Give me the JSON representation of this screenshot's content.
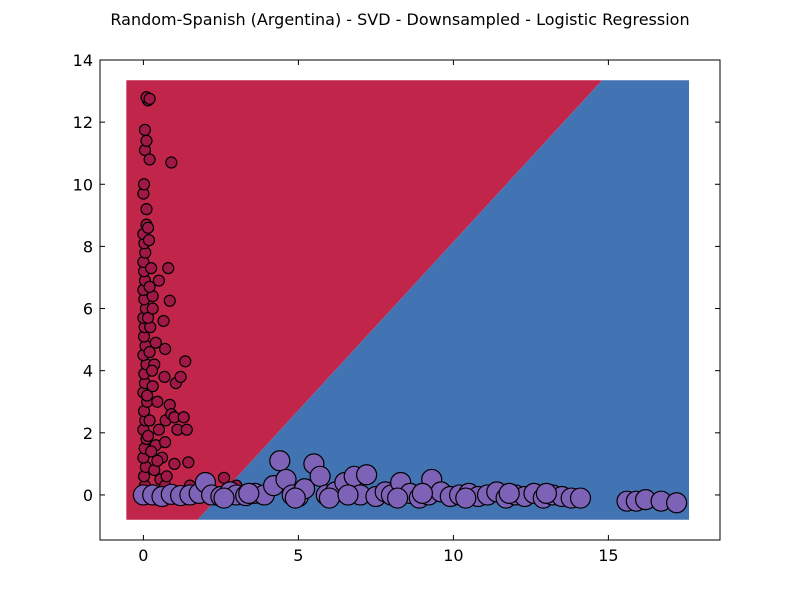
{
  "chart_data": {
    "type": "scatter",
    "title": "Random-Spanish (Argentina) - SVD - Downsampled - Logistic Regression",
    "xlabel": "",
    "ylabel": "",
    "xlim": [
      -1.4,
      18.6
    ],
    "ylim": [
      -1.45,
      14
    ],
    "xticks": [
      0,
      5,
      10,
      15
    ],
    "yticks": [
      0,
      2,
      4,
      6,
      8,
      10,
      12,
      14
    ],
    "grid": false,
    "colors": {
      "region_class_1": "#c1264a",
      "region_class_2": "#4274b3",
      "points_class_1": "#a01845",
      "points_class_2": "#7e62b7",
      "marker_edge": "#000000"
    },
    "decision_regions": {
      "extent": {
        "x": [
          -0.55,
          17.6
        ],
        "y": [
          -0.8,
          13.35
        ]
      },
      "boundary_line": [
        [
          1.75,
          -0.8
        ],
        [
          14.8,
          13.35
        ]
      ]
    },
    "series": [
      {
        "class": 1,
        "marker_size": "small",
        "points": [
          [
            0.0,
            0.0
          ],
          [
            0.05,
            0.3
          ],
          [
            0.02,
            0.6
          ],
          [
            0.08,
            0.9
          ],
          [
            0.0,
            1.2
          ],
          [
            0.04,
            1.5
          ],
          [
            0.1,
            1.8
          ],
          [
            0.0,
            2.1
          ],
          [
            0.06,
            2.4
          ],
          [
            0.02,
            2.7
          ],
          [
            0.12,
            3.0
          ],
          [
            0.0,
            3.3
          ],
          [
            0.05,
            3.6
          ],
          [
            0.03,
            3.9
          ],
          [
            0.1,
            4.2
          ],
          [
            0.0,
            4.5
          ],
          [
            0.07,
            4.8
          ],
          [
            0.02,
            5.1
          ],
          [
            0.04,
            5.4
          ],
          [
            0.0,
            5.7
          ],
          [
            0.08,
            6.0
          ],
          [
            0.03,
            6.3
          ],
          [
            0.0,
            6.6
          ],
          [
            0.05,
            6.9
          ],
          [
            0.02,
            7.2
          ],
          [
            0.0,
            7.5
          ],
          [
            0.06,
            7.8
          ],
          [
            0.03,
            8.1
          ],
          [
            0.0,
            8.4
          ],
          [
            0.1,
            8.7
          ],
          [
            0.15,
            8.6
          ],
          [
            0.0,
            9.7
          ],
          [
            0.02,
            10.0
          ],
          [
            0.05,
            11.1
          ],
          [
            0.1,
            11.4
          ],
          [
            0.05,
            11.75
          ],
          [
            0.15,
            12.7
          ],
          [
            0.1,
            12.8
          ],
          [
            0.2,
            12.75
          ],
          [
            0.2,
            10.8
          ],
          [
            0.1,
            9.2
          ],
          [
            0.18,
            8.2
          ],
          [
            0.25,
            7.3
          ],
          [
            0.3,
            6.4
          ],
          [
            0.22,
            5.4
          ],
          [
            0.4,
            4.9
          ],
          [
            0.35,
            4.2
          ],
          [
            0.3,
            3.5
          ],
          [
            0.45,
            3.0
          ],
          [
            0.5,
            2.1
          ],
          [
            0.4,
            1.6
          ],
          [
            0.6,
            1.2
          ],
          [
            0.35,
            0.8
          ],
          [
            0.55,
            0.5
          ],
          [
            0.7,
            0.3
          ],
          [
            0.65,
            5.6
          ],
          [
            0.7,
            4.7
          ],
          [
            0.68,
            3.8
          ],
          [
            0.72,
            2.4
          ],
          [
            0.7,
            1.7
          ],
          [
            0.75,
            0.6
          ],
          [
            0.9,
            10.7
          ],
          [
            0.8,
            7.3
          ],
          [
            0.85,
            6.25
          ],
          [
            0.85,
            2.9
          ],
          [
            0.9,
            2.6
          ],
          [
            1.0,
            2.5
          ],
          [
            1.0,
            1.0
          ],
          [
            1.05,
            3.6
          ],
          [
            1.2,
            3.8
          ],
          [
            1.1,
            2.1
          ],
          [
            1.3,
            2.5
          ],
          [
            1.35,
            4.3
          ],
          [
            1.4,
            2.1
          ],
          [
            1.45,
            1.05
          ],
          [
            1.5,
            0.3
          ],
          [
            1.8,
            0.1
          ],
          [
            2.1,
            0.2
          ],
          [
            2.6,
            0.55
          ],
          [
            3.0,
            0.3
          ],
          [
            0.5,
            6.9
          ],
          [
            1.2,
            0.0
          ],
          [
            0.9,
            0.05
          ],
          [
            0.3,
            0.15
          ],
          [
            0.6,
            0.05
          ],
          [
            1.7,
            0.0
          ],
          [
            2.3,
            0.05
          ],
          [
            0.15,
            0.05
          ],
          [
            0.25,
            1.4
          ],
          [
            0.45,
            1.1
          ],
          [
            0.15,
            1.9
          ],
          [
            0.2,
            2.4
          ],
          [
            0.12,
            3.2
          ],
          [
            0.28,
            4.0
          ],
          [
            0.2,
            4.6
          ],
          [
            0.15,
            5.7
          ],
          [
            0.3,
            6.0
          ],
          [
            0.2,
            6.7
          ]
        ]
      },
      {
        "class": 2,
        "marker_size": "large",
        "points": [
          [
            0.0,
            0.0
          ],
          [
            0.3,
            0.0
          ],
          [
            0.6,
            -0.05
          ],
          [
            0.9,
            0.02
          ],
          [
            1.2,
            -0.02
          ],
          [
            1.5,
            0.0
          ],
          [
            1.8,
            0.05
          ],
          [
            2.0,
            0.4
          ],
          [
            2.2,
            0.0
          ],
          [
            2.5,
            -0.05
          ],
          [
            2.8,
            0.1
          ],
          [
            3.0,
            0.0
          ],
          [
            3.3,
            -0.02
          ],
          [
            3.6,
            0.05
          ],
          [
            3.9,
            0.0
          ],
          [
            4.2,
            0.3
          ],
          [
            4.4,
            1.1
          ],
          [
            4.6,
            0.5
          ],
          [
            4.8,
            0.0
          ],
          [
            5.0,
            -0.05
          ],
          [
            5.2,
            0.2
          ],
          [
            5.5,
            1.0
          ],
          [
            5.7,
            0.6
          ],
          [
            5.9,
            0.0
          ],
          [
            6.2,
            0.1
          ],
          [
            6.5,
            0.4
          ],
          [
            6.8,
            0.6
          ],
          [
            7.0,
            0.0
          ],
          [
            7.2,
            0.65
          ],
          [
            7.5,
            -0.05
          ],
          [
            7.8,
            0.1
          ],
          [
            8.0,
            0.0
          ],
          [
            8.3,
            0.4
          ],
          [
            8.6,
            0.05
          ],
          [
            8.9,
            -0.1
          ],
          [
            9.2,
            0.0
          ],
          [
            9.3,
            0.5
          ],
          [
            9.6,
            0.1
          ],
          [
            9.9,
            -0.05
          ],
          [
            10.2,
            0.0
          ],
          [
            10.5,
            0.05
          ],
          [
            10.8,
            -0.05
          ],
          [
            11.1,
            0.0
          ],
          [
            11.4,
            0.1
          ],
          [
            11.7,
            -0.1
          ],
          [
            12.0,
            0.0
          ],
          [
            12.3,
            -0.05
          ],
          [
            12.6,
            0.05
          ],
          [
            12.9,
            -0.1
          ],
          [
            13.2,
            0.0
          ],
          [
            13.5,
            -0.05
          ],
          [
            13.8,
            -0.1
          ],
          [
            14.1,
            -0.1
          ],
          [
            15.6,
            -0.2
          ],
          [
            15.9,
            -0.2
          ],
          [
            16.2,
            -0.15
          ],
          [
            16.7,
            -0.2
          ],
          [
            17.2,
            -0.25
          ],
          [
            2.6,
            -0.1
          ],
          [
            3.4,
            0.05
          ],
          [
            4.9,
            -0.1
          ],
          [
            6.0,
            -0.1
          ],
          [
            6.6,
            0.0
          ],
          [
            8.2,
            -0.1
          ],
          [
            9.0,
            0.05
          ],
          [
            10.4,
            -0.1
          ],
          [
            11.8,
            0.05
          ],
          [
            13.0,
            0.05
          ]
        ]
      }
    ]
  }
}
